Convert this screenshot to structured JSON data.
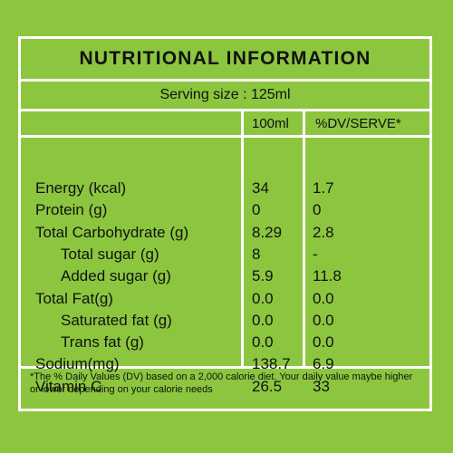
{
  "title": "NUTRITIONAL INFORMATION",
  "serving_size": "Serving size : 125ml",
  "columns": {
    "per_100ml": "100ml",
    "dv_per_serve": "%DV/SERVE*"
  },
  "rows": [
    {
      "name": "Energy (kcal)",
      "per_100ml": "34",
      "dv": "1.7",
      "indent": false
    },
    {
      "name": "Protein (g)",
      "per_100ml": "0",
      "dv": "0",
      "indent": false
    },
    {
      "name": "Total Carbohydrate (g)",
      "per_100ml": "8.29",
      "dv": "2.8",
      "indent": false
    },
    {
      "name": "Total sugar (g)",
      "per_100ml": "8",
      "dv": "-",
      "indent": true
    },
    {
      "name": "Added sugar (g)",
      "per_100ml": "5.9",
      "dv": "11.8",
      "indent": true
    },
    {
      "name": "Total Fat(g)",
      "per_100ml": "0.0",
      "dv": "0.0",
      "indent": false
    },
    {
      "name": "Saturated fat (g)",
      "per_100ml": "0.0",
      "dv": "0.0",
      "indent": true
    },
    {
      "name": "Trans fat (g)",
      "per_100ml": "0.0",
      "dv": "0.0",
      "indent": true
    },
    {
      "name": "Sodium(mg)",
      "per_100ml": "138.7",
      "dv": "6.9",
      "indent": false
    },
    {
      "name": "Vitamin C",
      "per_100ml": "26.5",
      "dv": "33",
      "indent": false
    }
  ],
  "footnote": "*The % Daily Values (DV) based on a 2,000 calorie diet. Your daily value maybe higher or lower depending on your calorie needs",
  "colors": {
    "background": "#8cc63f",
    "lines": "#ffffff",
    "text": "#111111"
  }
}
